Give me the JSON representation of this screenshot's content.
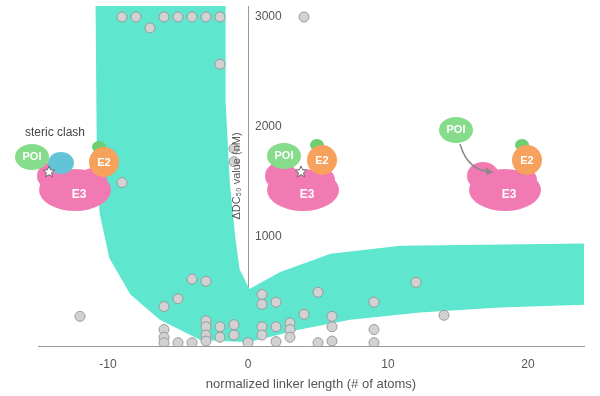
{
  "chart_data": {
    "type": "scatter",
    "x_label": "normalized linker length (# of atoms)",
    "y_label": "ΔDC₅₀ value (nM)",
    "x": [
      -9,
      -8,
      -6,
      -5,
      -4,
      -3,
      -2,
      -7,
      4,
      -2,
      -1,
      -1,
      -9,
      -12,
      -4,
      -3,
      -5,
      -6,
      -6,
      -6,
      -6,
      -5,
      -4,
      -3,
      -3,
      -3,
      -3,
      -2,
      -2,
      -1,
      -1,
      0,
      1,
      1,
      1,
      1,
      2,
      2,
      2,
      3,
      3,
      3,
      4,
      5,
      5,
      6,
      6,
      6,
      9,
      9,
      9,
      12,
      14
    ],
    "values": [
      3000,
      3000,
      3000,
      3000,
      3000,
      3000,
      3000,
      2900,
      3000,
      2570,
      1800,
      1680,
      1490,
      270,
      610,
      590,
      430,
      360,
      150,
      80,
      30,
      30,
      30,
      230,
      175,
      100,
      45,
      175,
      80,
      195,
      100,
      30,
      470,
      380,
      175,
      100,
      400,
      175,
      40,
      210,
      150,
      80,
      290,
      490,
      30,
      270,
      175,
      45,
      400,
      150,
      30,
      580,
      280
    ],
    "color": "#d2d2d2",
    "marker": "circle",
    "xlim": [
      -15,
      24
    ],
    "xticks": [
      -10,
      0,
      10,
      20
    ],
    "ylim": [
      0,
      3100
    ],
    "yticks": [
      1000,
      2000,
      3000
    ],
    "grid": false,
    "band": {
      "x": [
        -10.9,
        -10.8,
        -10.6,
        -9.9,
        -8.4,
        -6.3,
        -3.4,
        0,
        3.7,
        7.3,
        12.3,
        18,
        25,
        25,
        10.9,
        5.9,
        2.3,
        0.1,
        -0.6,
        -0.9,
        -1.3,
        -1.6,
        -1.6
      ],
      "y": [
        3300,
        1770,
        1210,
        800,
        470,
        240,
        55,
        35,
        150,
        240,
        305,
        350,
        380,
        935,
        915,
        840,
        675,
        520,
        700,
        980,
        1490,
        2230,
        3300
      ],
      "color": "#5ee6cf"
    },
    "panels": [
      {
        "caption": "steric clash",
        "poi": "POI",
        "e2": "E2",
        "e3": "E3"
      },
      {
        "poi": "POI",
        "e2": "E2",
        "e3": "E3"
      },
      {
        "poi": "POI",
        "e2": "E2",
        "e3": "E3"
      }
    ]
  }
}
